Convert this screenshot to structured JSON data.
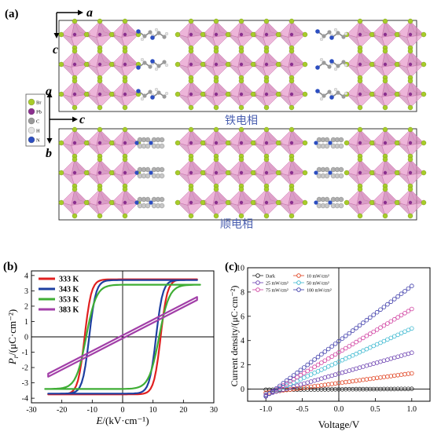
{
  "panel_a": {
    "label": "(a)",
    "axis_labels": {
      "a_top": "a",
      "c_top": "c",
      "a_mid": "a",
      "c_mid": "c",
      "b_mid": "b"
    },
    "legend": [
      {
        "symbol": "Br",
        "color": "#a8cc2a"
      },
      {
        "symbol": "Pb",
        "color": "#8b2f8f"
      },
      {
        "symbol": "C",
        "color": "#9a9a9a"
      },
      {
        "symbol": "H",
        "color": "#e4e4e4"
      },
      {
        "symbol": "N",
        "color": "#2c4ec0"
      }
    ],
    "phase_top": "铁电相",
    "phase_bottom": "顺电相",
    "colors": {
      "octahedron": "#e8a2cf",
      "octahedron_dark": "#c874ad",
      "text_blue": "#4a5fb0"
    }
  },
  "chart_data": [
    {
      "type": "line",
      "panel": "(b)",
      "xlabel_var": "E",
      "xlabel_unit": "/(kV·cm⁻¹)",
      "ylabel_var": "P",
      "ylabel_sub": "r",
      "ylabel_unit": "/(μC·cm⁻²)",
      "xlim": [
        -30,
        30
      ],
      "ylim": [
        -4.3,
        4.3
      ],
      "xticks": [
        -30,
        -20,
        -10,
        0,
        10,
        20,
        30
      ],
      "yticks": [
        -4,
        -3,
        -2,
        -1,
        0,
        1,
        2,
        3,
        4
      ],
      "grid": false,
      "legend_position": "top-left",
      "series": [
        {
          "name": "333 K",
          "color": "#e02020",
          "kind": "loop",
          "Emax": 24.5,
          "Ec": 12.5,
          "Ps": 3.75,
          "Pr": 3.6,
          "k": 0.45,
          "n": 8
        },
        {
          "name": "343 K",
          "color": "#1e3fa0",
          "kind": "loop",
          "Emax": 24.5,
          "Ec": 11.0,
          "Ps": 3.7,
          "Pr": 3.5,
          "k": 0.45,
          "n": 8
        },
        {
          "name": "353 K",
          "color": "#3fae35",
          "kind": "loop",
          "Emax": 25.5,
          "Ec": 12.0,
          "Ps": 3.4,
          "Pr": 2.9,
          "k": 0.3,
          "n": 5
        },
        {
          "name": "383 K",
          "color": "#a23fa8",
          "kind": "linear",
          "x": [
            -24.5,
            24.5
          ],
          "y_upper": [
            -2.4,
            2.6
          ],
          "y_lower": [
            -2.6,
            2.4
          ]
        }
      ]
    },
    {
      "type": "scatter",
      "panel": "(c)",
      "xlabel": "Voltage/V",
      "ylabel": "Current density/(μC·cm⁻²)",
      "xlim": [
        -1.25,
        1.25
      ],
      "ylim": [
        -1,
        10
      ],
      "xticks": [
        -1.0,
        -0.5,
        0.0,
        0.5,
        1.0
      ],
      "yticks": [
        0,
        2,
        4,
        6,
        8,
        10
      ],
      "grid": false,
      "legend_position": "top",
      "series": [
        {
          "name": "Dark",
          "color": "#222222",
          "x": [
            -1.0,
            1.0
          ],
          "y": [
            -0.05,
            0.02
          ]
        },
        {
          "name": "10 mW/cm²",
          "color": "#e0401e",
          "x": [
            -1.0,
            1.0
          ],
          "y": [
            -0.3,
            1.3
          ]
        },
        {
          "name": "25 mW/cm²",
          "color": "#6a3fb0",
          "x": [
            -1.0,
            1.0
          ],
          "y": [
            -0.45,
            3.0
          ]
        },
        {
          "name": "50 mW/cm²",
          "color": "#3bb8d0",
          "x": [
            -1.0,
            1.0
          ],
          "y": [
            -0.5,
            5.0
          ]
        },
        {
          "name": "75 mW/cm²",
          "color": "#d03fa0",
          "x": [
            -1.0,
            1.0
          ],
          "y": [
            -0.55,
            6.6
          ]
        },
        {
          "name": "100 mW/cm²",
          "color": "#3a38a8",
          "x": [
            -1.0,
            1.0
          ],
          "y": [
            -0.6,
            8.5
          ]
        }
      ]
    }
  ]
}
